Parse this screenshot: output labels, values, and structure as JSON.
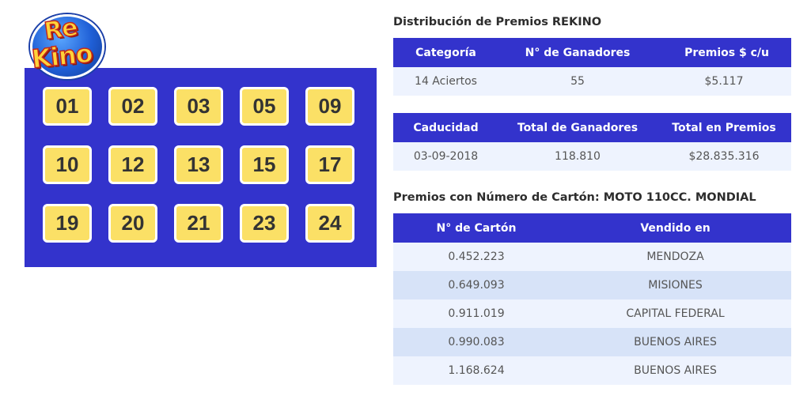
{
  "logo": {
    "text_top": "Re",
    "text_bottom": "Kino"
  },
  "drawn_numbers": [
    "01",
    "02",
    "03",
    "05",
    "09",
    "10",
    "12",
    "13",
    "15",
    "17",
    "19",
    "20",
    "21",
    "23",
    "24"
  ],
  "distribution": {
    "title": "Distribución de Premios REKINO",
    "headers": [
      "Categoría",
      "N° de Ganadores",
      "Premios $ c/u"
    ],
    "row": [
      "14 Aciertos",
      "55",
      "$5.117"
    ]
  },
  "summary": {
    "headers": [
      "Caducidad",
      "Total de Ganadores",
      "Total en Premios"
    ],
    "row": [
      "03-09-2018",
      "118.810",
      "$28.835.316"
    ]
  },
  "carton_prizes": {
    "title": "Premios con Número de Cartón: MOTO 110CC. MONDIAL",
    "headers": [
      "N° de Cartón",
      "Vendido en"
    ],
    "rows": [
      [
        "0.452.223",
        "MENDOZA"
      ],
      [
        "0.649.093",
        "MISIONES"
      ],
      [
        "0.911.019",
        "CAPITAL FEDERAL"
      ],
      [
        "0.990.083",
        "BUENOS AIRES"
      ],
      [
        "1.168.624",
        "BUENOS AIRES"
      ]
    ]
  },
  "colors": {
    "header_blue": "#3333cc",
    "ball_yellow": "#fbe066",
    "row_light": "#eef3fe",
    "row_dark": "#d7e3f8"
  }
}
